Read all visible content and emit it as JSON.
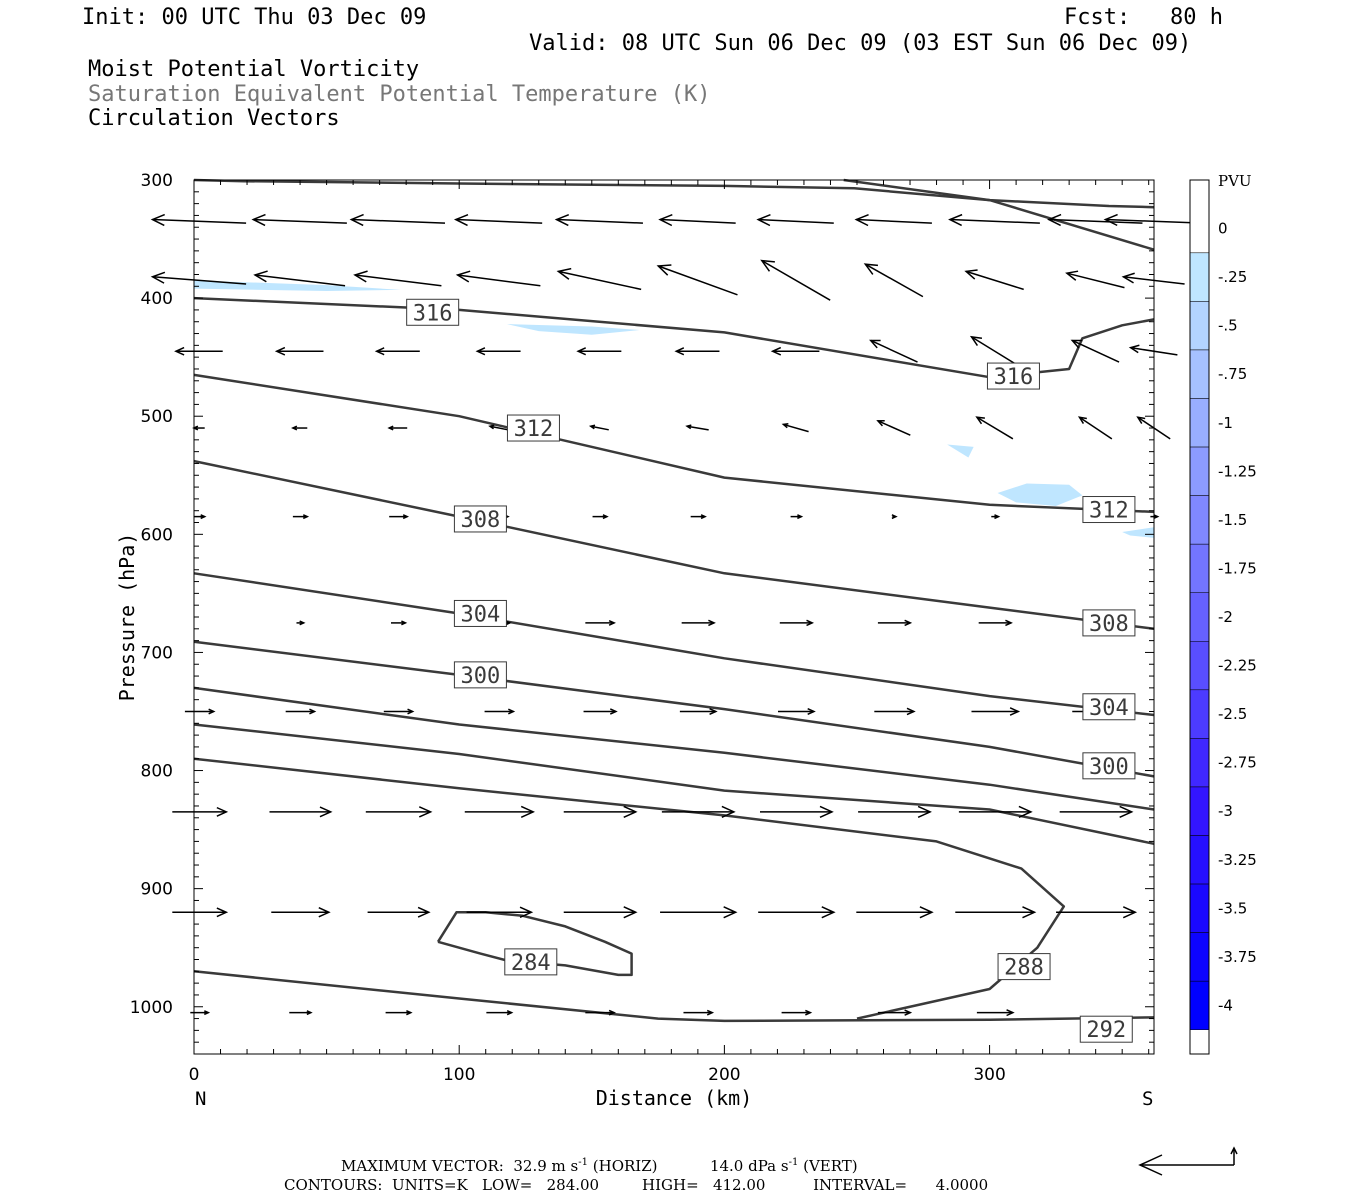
{
  "header": {
    "init": "Init: 00 UTC Thu 03 Dec 09",
    "fcst": "Fcst:   80 h",
    "valid": "Valid: 08 UTC Sun 06 Dec 09 (03 EST Sun 06 Dec 09)",
    "line1": "Moist Potential Vorticity",
    "line2": "Saturation Equivalent Potential Temperature (K)",
    "line3": "Circulation Vectors"
  },
  "chart_data": {
    "type": "cross-section",
    "xlabel": "Distance (km)",
    "ylabel": "Pressure (hPa)",
    "xlim": [
      0,
      362
    ],
    "ylim": [
      1040,
      300
    ],
    "xticks": [
      0,
      100,
      200,
      300
    ],
    "yticks": [
      300,
      400,
      500,
      600,
      700,
      800,
      900,
      1000
    ],
    "x_end_labels": {
      "left": "N",
      "right": "S"
    },
    "colorbar": {
      "unit": "PVU",
      "levels": [
        "0",
        "-.25",
        "-.5",
        "-.75",
        "-1",
        "-1.25",
        "-1.5",
        "-1.75",
        "-2",
        "-2.25",
        "-2.5",
        "-2.75",
        "-3",
        "-3.25",
        "-3.5",
        "-3.75",
        "-4"
      ],
      "colors": [
        "#ffffff",
        "#bfe6ff",
        "#b3d4ff",
        "#a6c1ff",
        "#99aeff",
        "#8c9bff",
        "#8088ff",
        "#7375ff",
        "#6661ff",
        "#594eff",
        "#4c3bff",
        "#4028ff",
        "#3315ff",
        "#2610ff",
        "#1a08ff",
        "#0d04ff",
        "#0000ff"
      ]
    },
    "contours": [
      {
        "label": "",
        "points": [
          [
            0,
            300
          ],
          [
            19,
            301
          ],
          [
            100,
            303
          ],
          [
            200,
            305
          ],
          [
            249,
            307
          ],
          [
            300,
            317
          ],
          [
            345,
            322
          ],
          [
            362,
            323
          ]
        ]
      },
      {
        "label": "",
        "points": [
          [
            245,
            300
          ],
          [
            300,
            317
          ],
          [
            362,
            359
          ]
        ]
      },
      {
        "label": "316",
        "points": [
          [
            0,
            400
          ],
          [
            100,
            410
          ],
          [
            200,
            429
          ],
          [
            300,
            467
          ],
          [
            330,
            460
          ],
          [
            335,
            434
          ],
          [
            350,
            423
          ],
          [
            362,
            418
          ]
        ],
        "label_at": [
          [
            90,
            412
          ],
          [
            309,
            466
          ]
        ]
      },
      {
        "label": "312",
        "points": [
          [
            0,
            465
          ],
          [
            100,
            500
          ],
          [
            200,
            552
          ],
          [
            300,
            575
          ],
          [
            362,
            581
          ]
        ],
        "label_at": [
          [
            128,
            510
          ],
          [
            345,
            579
          ]
        ]
      },
      {
        "label": "308",
        "points": [
          [
            0,
            538
          ],
          [
            100,
            585
          ],
          [
            200,
            633
          ],
          [
            300,
            662
          ],
          [
            362,
            680
          ]
        ],
        "label_at": [
          [
            108,
            587
          ],
          [
            345,
            675
          ]
        ]
      },
      {
        "label": "304",
        "points": [
          [
            0,
            633
          ],
          [
            100,
            667
          ],
          [
            200,
            705
          ],
          [
            300,
            737
          ],
          [
            362,
            753
          ]
        ],
        "label_at": [
          [
            108,
            667
          ],
          [
            345,
            746
          ]
        ]
      },
      {
        "label": "300",
        "points": [
          [
            0,
            691
          ],
          [
            100,
            719
          ],
          [
            200,
            748
          ],
          [
            300,
            780
          ],
          [
            362,
            805
          ]
        ],
        "label_at": [
          [
            108,
            719
          ],
          [
            345,
            796
          ]
        ]
      },
      {
        "label": "",
        "points": [
          [
            0,
            730
          ],
          [
            100,
            761
          ],
          [
            200,
            785
          ],
          [
            300,
            812
          ],
          [
            362,
            833
          ]
        ]
      },
      {
        "label": "",
        "points": [
          [
            0,
            761
          ],
          [
            100,
            786
          ],
          [
            200,
            817
          ],
          [
            300,
            833
          ],
          [
            362,
            862
          ]
        ]
      },
      {
        "label": "288",
        "points": [
          [
            0,
            790
          ],
          [
            100,
            815
          ],
          [
            200,
            838
          ],
          [
            280,
            860
          ],
          [
            312,
            883
          ],
          [
            328,
            915
          ],
          [
            318,
            950
          ],
          [
            300,
            985
          ],
          [
            250,
            1010
          ]
        ],
        "label_at": [
          [
            313,
            966
          ]
        ]
      },
      {
        "label": "284",
        "points": [
          [
            92,
            945
          ],
          [
            99,
            920
          ],
          [
            110,
            920
          ],
          [
            124,
            923
          ],
          [
            140,
            932
          ],
          [
            155,
            945
          ],
          [
            165,
            955
          ],
          [
            165,
            973
          ],
          [
            160,
            973
          ],
          [
            140,
            965
          ],
          [
            130,
            963
          ],
          [
            120,
            962
          ],
          [
            108,
            955
          ],
          [
            92,
            945
          ]
        ],
        "label_at": [
          [
            127,
            962
          ]
        ]
      },
      {
        "label": "292",
        "points": [
          [
            0,
            970
          ],
          [
            100,
            993
          ],
          [
            175,
            1010
          ],
          [
            200,
            1012
          ],
          [
            300,
            1011
          ],
          [
            362,
            1009
          ]
        ],
        "label_at": [
          [
            344,
            1019
          ]
        ]
      }
    ],
    "negative_pv_regions": [
      {
        "color": "#bfe6ff",
        "points": [
          [
            0,
            385
          ],
          [
            50,
            389
          ],
          [
            78,
            393
          ],
          [
            50,
            394
          ],
          [
            0,
            392
          ]
        ]
      },
      {
        "color": "#bfe6ff",
        "points": [
          [
            118,
            422
          ],
          [
            150,
            424
          ],
          [
            168,
            427
          ],
          [
            150,
            431
          ],
          [
            130,
            428
          ]
        ]
      },
      {
        "color": "#bfe6ff",
        "points": [
          [
            284,
            524
          ],
          [
            294,
            526
          ],
          [
            292,
            535
          ]
        ]
      },
      {
        "color": "#bfe6ff",
        "points": [
          [
            303,
            565
          ],
          [
            314,
            557
          ],
          [
            330,
            558
          ],
          [
            335,
            567
          ],
          [
            325,
            576
          ],
          [
            310,
            573
          ]
        ]
      },
      {
        "color": "#bfe6ff",
        "points": [
          [
            350,
            598
          ],
          [
            362,
            594
          ],
          [
            362,
            603
          ],
          [
            353,
            601
          ]
        ]
      }
    ],
    "vectors": {
      "columns_km": [
        2,
        40,
        77,
        115,
        153,
        190,
        227,
        264,
        302,
        340,
        362
      ],
      "rows": [
        {
          "p": 335,
          "u": [
            -2.6,
            -2.6,
            -2.6,
            -2.4,
            -2.4,
            -2.1,
            -2.1,
            -2.1,
            -2.5,
            -2.6,
            -2.7
          ],
          "w": [
            -0.1,
            -0.1,
            -0.1,
            -0.1,
            -0.1,
            -0.1,
            -0.1,
            -0.1,
            -0.1,
            -0.1,
            -0.1
          ]
        },
        {
          "p": 385,
          "u": [
            -2.6,
            -2.5,
            -2.4,
            -2.3,
            -2.3,
            -2.2,
            -1.9,
            -1.6,
            -1.6,
            -1.6,
            -1.7
          ],
          "w": [
            -0.2,
            -0.3,
            -0.3,
            -0.3,
            -0.5,
            -0.8,
            -1.1,
            -0.9,
            -0.5,
            -0.4,
            -0.2
          ]
        },
        {
          "p": 445,
          "u": [
            -1.3,
            -1.3,
            -1.2,
            -1.2,
            -1.2,
            -1.2,
            -1.3,
            -1.3,
            -1.3,
            -1.3,
            -1.3
          ],
          "w": [
            0,
            0,
            0,
            0,
            0,
            0,
            0,
            -0.6,
            -0.8,
            -0.6,
            -0.2
          ]
        },
        {
          "p": 510,
          "u": [
            -0.3,
            -0.4,
            -0.5,
            -0.5,
            -0.5,
            -0.6,
            -0.7,
            -0.9,
            -1.0,
            -0.9,
            -0.9
          ],
          "w": [
            0,
            0,
            0,
            -0.1,
            -0.1,
            -0.1,
            -0.2,
            -0.4,
            -0.6,
            -0.6,
            -0.6
          ]
        },
        {
          "p": 585,
          "u": [
            0.3,
            0.4,
            0.5,
            0.5,
            0.4,
            0.4,
            0.3,
            0.1,
            0.2,
            0.3,
            0.2
          ],
          "w": [
            0,
            0,
            0,
            0,
            0,
            0,
            0,
            0,
            0,
            0,
            0
          ]
        },
        {
          "p": 675,
          "u": [
            0,
            0.2,
            0.4,
            0.6,
            0.8,
            0.9,
            0.9,
            0.9,
            0.9,
            0,
            0
          ],
          "w": [
            0,
            0,
            0,
            0,
            0,
            0,
            0,
            0,
            0,
            0,
            0
          ]
        },
        {
          "p": 750,
          "u": [
            0.8,
            0.8,
            0.8,
            0.8,
            0.9,
            1.0,
            1.0,
            1.1,
            1.3,
            1.3,
            0
          ],
          "w": [
            0,
            0,
            0,
            0,
            0,
            0,
            0,
            0,
            0,
            0,
            0
          ]
        },
        {
          "p": 835,
          "u": [
            1.5,
            1.7,
            1.8,
            1.9,
            2.0,
            2.0,
            2.0,
            2.0,
            2.0,
            2.0,
            0
          ],
          "w": [
            0,
            0,
            0,
            0,
            0,
            0,
            0,
            0,
            0,
            0,
            0
          ]
        },
        {
          "p": 920,
          "u": [
            1.5,
            1.6,
            1.7,
            1.8,
            2.0,
            2.1,
            2.1,
            2.1,
            2.2,
            2.2,
            0
          ],
          "w": [
            0,
            0,
            0,
            0,
            0,
            0,
            0,
            0,
            0,
            0,
            0
          ]
        },
        {
          "p": 1005,
          "u": [
            0.5,
            0.6,
            0.7,
            0.7,
            0.8,
            0.8,
            0.8,
            0.9,
            1.0,
            0,
            0
          ],
          "w": [
            0,
            0,
            0,
            0,
            0,
            0,
            0,
            0,
            0,
            0,
            0
          ]
        }
      ]
    }
  },
  "footer": {
    "line1_a": "MAXIMUM VECTOR:  32.9 m s",
    "line1_b": "(HORIZ)",
    "line1_c": "14.0 dPa s",
    "line1_d": "(VERT)",
    "exponent": "-1",
    "line2": "CONTOURS:  UNITS=K   LOW=   284.00         HIGH=   412.00          INTERVAL=      4.0000"
  }
}
